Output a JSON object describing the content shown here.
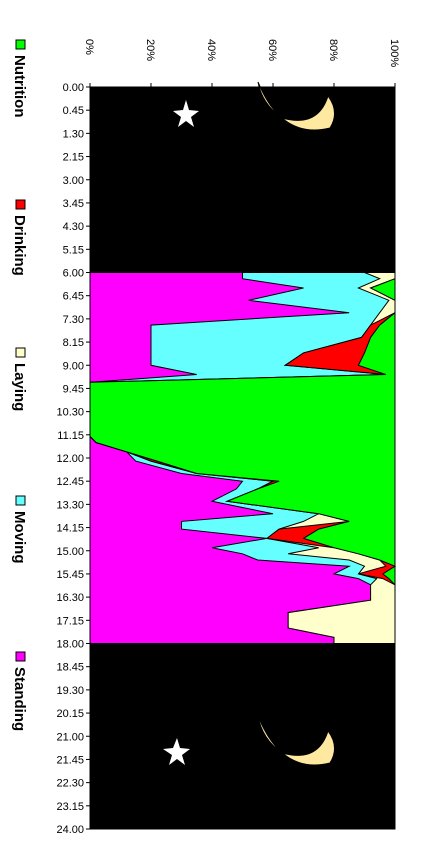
{
  "chart_data": {
    "type": "area",
    "stacking": "percent",
    "orientation": "rotated-90-clockwise",
    "x_ticks": [
      "0.00",
      "0.45",
      "1.30",
      "2.15",
      "3.00",
      "3.45",
      "4.30",
      "5.15",
      "6.00",
      "6.45",
      "7.30",
      "8.15",
      "9.00",
      "9.45",
      "10.30",
      "11.15",
      "12.00",
      "12.45",
      "13.30",
      "14.15",
      "15.00",
      "15.45",
      "16.30",
      "17.15",
      "18.00",
      "18.45",
      "19.30",
      "20.15",
      "21.00",
      "21.45",
      "22.30",
      "23.15",
      "24.00"
    ],
    "xlim": [
      0,
      24
    ],
    "y_ticks": [
      "0%",
      "20%",
      "40%",
      "60%",
      "80%",
      "100%"
    ],
    "ylim": [
      0,
      100
    ],
    "night_background": "#000000",
    "series": [
      {
        "name": "Nutrition",
        "color": "#00ff00",
        "points": [
          [
            6.0,
            0
          ],
          [
            6.2,
            0
          ],
          [
            6.5,
            8
          ],
          [
            6.9,
            0
          ],
          [
            7.3,
            0
          ],
          [
            7.7,
            5
          ],
          [
            8.1,
            8
          ],
          [
            8.6,
            10
          ],
          [
            9.0,
            12
          ],
          [
            9.3,
            3
          ],
          [
            9.55,
            100
          ],
          [
            11.3,
            100
          ],
          [
            11.5,
            98
          ],
          [
            11.8,
            88
          ],
          [
            12.1,
            78
          ],
          [
            12.5,
            65
          ],
          [
            12.75,
            38
          ],
          [
            13.0,
            45
          ],
          [
            13.4,
            55
          ],
          [
            13.8,
            25
          ],
          [
            14.05,
            15
          ],
          [
            14.3,
            25
          ],
          [
            14.6,
            30
          ],
          [
            14.9,
            20
          ],
          [
            15.1,
            12
          ],
          [
            15.3,
            5
          ],
          [
            15.5,
            0
          ],
          [
            15.75,
            4
          ],
          [
            15.9,
            2
          ],
          [
            16.1,
            0
          ],
          [
            18.0,
            0
          ]
        ]
      },
      {
        "name": "Drinking",
        "color": "#ff0000",
        "points": [
          [
            6.0,
            0
          ],
          [
            6.2,
            0
          ],
          [
            6.5,
            8
          ],
          [
            6.9,
            0
          ],
          [
            7.3,
            0
          ],
          [
            7.7,
            8
          ],
          [
            8.1,
            11
          ],
          [
            8.6,
            30
          ],
          [
            9.0,
            36
          ],
          [
            9.3,
            3
          ],
          [
            9.55,
            100
          ],
          [
            11.3,
            100
          ],
          [
            11.5,
            98
          ],
          [
            11.8,
            88
          ],
          [
            12.1,
            80
          ],
          [
            12.5,
            65
          ],
          [
            12.75,
            40
          ],
          [
            13.0,
            45
          ],
          [
            13.4,
            55
          ],
          [
            13.8,
            25
          ],
          [
            14.05,
            15
          ],
          [
            14.3,
            38
          ],
          [
            14.6,
            42
          ],
          [
            14.9,
            20
          ],
          [
            15.1,
            12
          ],
          [
            15.3,
            5
          ],
          [
            15.5,
            3
          ],
          [
            15.75,
            12
          ],
          [
            15.9,
            4
          ],
          [
            16.1,
            0
          ],
          [
            18.0,
            0
          ]
        ]
      },
      {
        "name": "Laying",
        "color": "#ffffcc",
        "points": [
          [
            6.0,
            10
          ],
          [
            6.2,
            5
          ],
          [
            6.5,
            12
          ],
          [
            6.9,
            2
          ],
          [
            7.3,
            5
          ],
          [
            7.7,
            8
          ],
          [
            8.1,
            11
          ],
          [
            8.6,
            30
          ],
          [
            9.0,
            36
          ],
          [
            9.3,
            3
          ],
          [
            9.55,
            100
          ],
          [
            11.3,
            100
          ],
          [
            11.5,
            98
          ],
          [
            11.8,
            88
          ],
          [
            12.1,
            80
          ],
          [
            12.5,
            65
          ],
          [
            12.75,
            40
          ],
          [
            13.0,
            45
          ],
          [
            13.4,
            55
          ],
          [
            13.8,
            25
          ],
          [
            14.05,
            30
          ],
          [
            14.3,
            38
          ],
          [
            14.6,
            42
          ],
          [
            14.9,
            25
          ],
          [
            15.1,
            35
          ],
          [
            15.3,
            15
          ],
          [
            15.5,
            10
          ],
          [
            15.75,
            12
          ],
          [
            15.9,
            6
          ],
          [
            16.1,
            8
          ],
          [
            16.4,
            8
          ],
          [
            16.6,
            8
          ],
          [
            17.0,
            35
          ],
          [
            17.5,
            35
          ],
          [
            17.8,
            20
          ],
          [
            18.0,
            20
          ]
        ]
      },
      {
        "name": "Moving",
        "color": "#66ffff",
        "points": [
          [
            6.0,
            50
          ],
          [
            6.2,
            50
          ],
          [
            6.5,
            30
          ],
          [
            6.9,
            48
          ],
          [
            7.3,
            15
          ],
          [
            7.7,
            80
          ],
          [
            8.1,
            80
          ],
          [
            8.6,
            80
          ],
          [
            9.0,
            80
          ],
          [
            9.3,
            65
          ],
          [
            9.55,
            100
          ],
          [
            11.3,
            100
          ],
          [
            11.5,
            98
          ],
          [
            11.8,
            88
          ],
          [
            12.1,
            85
          ],
          [
            12.5,
            70
          ],
          [
            12.75,
            50
          ],
          [
            13.0,
            52
          ],
          [
            13.4,
            60
          ],
          [
            13.8,
            40
          ],
          [
            14.05,
            70
          ],
          [
            14.3,
            70
          ],
          [
            14.6,
            42
          ],
          [
            14.9,
            60
          ],
          [
            15.1,
            50
          ],
          [
            15.3,
            45
          ],
          [
            15.5,
            15
          ],
          [
            15.75,
            20
          ],
          [
            15.9,
            12
          ],
          [
            16.1,
            8
          ],
          [
            16.4,
            8
          ],
          [
            16.6,
            8
          ],
          [
            17.0,
            35
          ],
          [
            17.5,
            35
          ],
          [
            17.8,
            20
          ],
          [
            18.0,
            20
          ]
        ]
      },
      {
        "name": "Standing",
        "color": "#ff00ff",
        "points": [
          [
            6.0,
            100
          ],
          [
            18.0,
            100
          ]
        ]
      }
    ],
    "legend": [
      "Nutrition",
      "Drinking",
      "Laying",
      "Moving",
      "Standing"
    ],
    "legend_position": "bottom",
    "grid": false
  }
}
